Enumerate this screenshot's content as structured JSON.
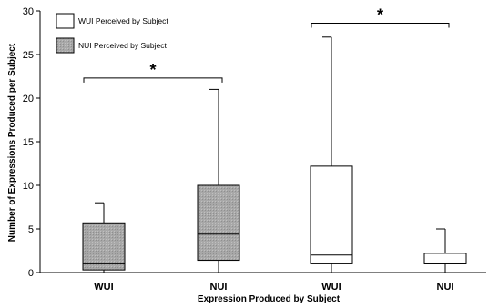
{
  "chart_data": {
    "type": "boxplot",
    "xlabel": "Expression Produced by Subject",
    "ylabel": "Number of Expressions Produced per Subject",
    "ylim": [
      0,
      30
    ],
    "yticks": [
      0,
      5,
      10,
      15,
      20,
      25,
      30
    ],
    "categories": [
      "WUI",
      "NUI",
      "WUI",
      "NUI"
    ],
    "series": [
      {
        "name": "NUI Perceived by Subject",
        "fill": "#a6a6a6",
        "hatched": true
      },
      {
        "name": "WUI Perceived by Subject",
        "fill": "#ffffff",
        "hatched": false
      }
    ],
    "boxes": [
      {
        "category": "WUI",
        "series": 0,
        "min": 0,
        "q1": 0.3,
        "median": 1.0,
        "q3": 5.7,
        "max": 8.0
      },
      {
        "category": "NUI",
        "series": 0,
        "min": 0,
        "q1": 1.4,
        "median": 4.4,
        "q3": 10.0,
        "max": 21.0
      },
      {
        "category": "WUI",
        "series": 1,
        "min": 0,
        "q1": 1.0,
        "median": 2.0,
        "q3": 12.2,
        "max": 27.0
      },
      {
        "category": "NUI",
        "series": 1,
        "min": 0,
        "q1": 1.0,
        "median": 1.0,
        "q3": 2.2,
        "max": 5.0
      }
    ],
    "legend": [
      {
        "label": "WUI Perceived by Subject",
        "series": 1
      },
      {
        "label": "NUI Perceived by Subject",
        "series": 0
      }
    ],
    "legend_position": "top-left",
    "annotations": [
      {
        "text": "*",
        "from": 0,
        "to": 1,
        "y": 22.3
      },
      {
        "text": "*",
        "from": 2,
        "to": 3,
        "y": 28.6
      }
    ]
  }
}
